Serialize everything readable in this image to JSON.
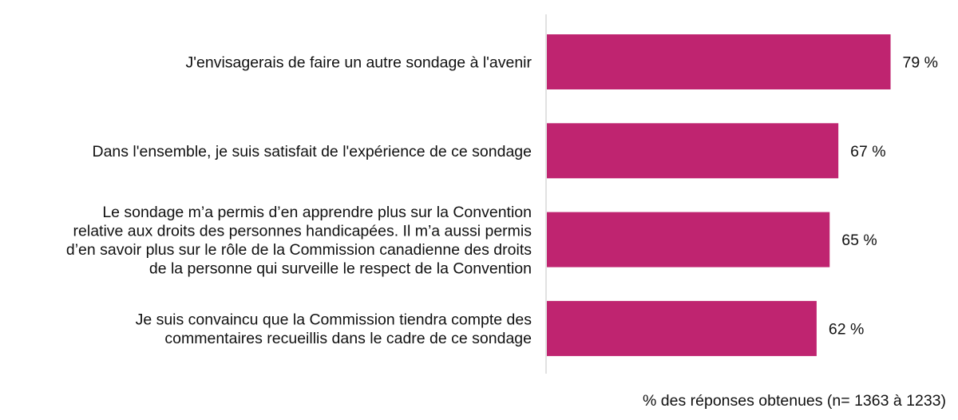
{
  "chart_data": {
    "type": "bar",
    "orientation": "horizontal",
    "categories": [
      [
        "J'envisagerais de faire un autre sondage à l'avenir"
      ],
      [
        "Dans l'ensemble, je suis satisfait de l'expérience de ce sondage"
      ],
      [
        "Le sondage m’a permis d’en apprendre plus sur la Convention",
        "relative aux droits des personnes handicapées. Il m’a aussi permis",
        "d’en savoir plus sur le rôle de la Commission canadienne des droits",
        "de la personne qui surveille le respect de la Convention"
      ],
      [
        "Je suis convaincu que la Commission tiendra compte des",
        "commentaires recueillis dans le cadre de ce sondage"
      ]
    ],
    "values": [
      79,
      67,
      65,
      62
    ],
    "value_labels": [
      "79 %",
      "67 %",
      "65 %",
      "62 %"
    ],
    "xlabel": "% des réponses obtenues (n= 1363 à 1233)",
    "xlim": [
      0,
      100
    ],
    "bar_color": "#bf2470",
    "axis_color": "#d9d9d9",
    "grid": false,
    "legend": "none"
  }
}
